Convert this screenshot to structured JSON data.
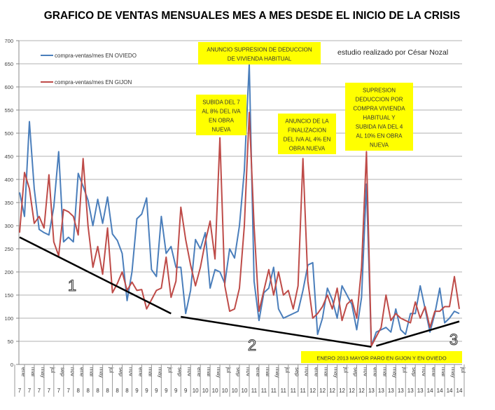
{
  "chart_data": {
    "type": "line",
    "title": "GRAFICO DE VENTAS MENSUALES MES A MES DESDE EL INICIO DE LA CRISIS",
    "credit": "estudio realizado por César Nozal",
    "ylim": [
      0,
      700
    ],
    "yticks": [
      0,
      50,
      100,
      150,
      200,
      250,
      300,
      350,
      400,
      450,
      500,
      550,
      600,
      650,
      700
    ],
    "grid": true,
    "legend_position": "top-left",
    "x_start": "ene 2007",
    "x_end": "jul 2014",
    "x_tick_labels": [
      {
        "m": "ene",
        "y": "7"
      },
      {
        "m": "mar",
        "y": "7"
      },
      {
        "m": "may",
        "y": "7"
      },
      {
        "m": "jul",
        "y": "7"
      },
      {
        "m": "sep",
        "y": "7"
      },
      {
        "m": "nov",
        "y": "7"
      },
      {
        "m": "ene",
        "y": "8"
      },
      {
        "m": "mar",
        "y": "8"
      },
      {
        "m": "may",
        "y": "8"
      },
      {
        "m": "jul",
        "y": "8"
      },
      {
        "m": "sep",
        "y": "8"
      },
      {
        "m": "nov",
        "y": "8"
      },
      {
        "m": "ene",
        "y": "9"
      },
      {
        "m": "mar",
        "y": "9"
      },
      {
        "m": "may",
        "y": "9"
      },
      {
        "m": "jul",
        "y": "9"
      },
      {
        "m": "sep",
        "y": "9"
      },
      {
        "m": "nov",
        "y": "9"
      },
      {
        "m": "ene",
        "y": "10"
      },
      {
        "m": "mar",
        "y": "10"
      },
      {
        "m": "may",
        "y": "10"
      },
      {
        "m": "jul",
        "y": "10"
      },
      {
        "m": "sep",
        "y": "10"
      },
      {
        "m": "nov",
        "y": "10"
      },
      {
        "m": "ene",
        "y": "11"
      },
      {
        "m": "mar",
        "y": "11"
      },
      {
        "m": "may",
        "y": "11"
      },
      {
        "m": "jul",
        "y": "11"
      },
      {
        "m": "sep",
        "y": "11"
      },
      {
        "m": "nov",
        "y": "11"
      },
      {
        "m": "ene",
        "y": "12"
      },
      {
        "m": "mar",
        "y": "12"
      },
      {
        "m": "may",
        "y": "12"
      },
      {
        "m": "jul",
        "y": "12"
      },
      {
        "m": "sep",
        "y": "12"
      },
      {
        "m": "nov",
        "y": "12"
      },
      {
        "m": "ene",
        "y": "13"
      },
      {
        "m": "mar",
        "y": "13"
      },
      {
        "m": "may",
        "y": "13"
      },
      {
        "m": "jul",
        "y": "13"
      },
      {
        "m": "sep",
        "y": "13"
      },
      {
        "m": "nov",
        "y": "13"
      },
      {
        "m": "ene",
        "y": "14"
      },
      {
        "m": "mar",
        "y": "14"
      },
      {
        "m": "may",
        "y": "14"
      },
      {
        "m": "jul",
        "y": "14"
      }
    ],
    "series": [
      {
        "name": "compra-ventas/mes EN OVIEDO",
        "color": "#4a7ebb",
        "values": [
          372,
          320,
          525,
          380,
          292,
          285,
          280,
          340,
          460,
          265,
          275,
          265,
          413,
          385,
          355,
          300,
          357,
          305,
          362,
          282,
          268,
          240,
          138,
          200,
          315,
          325,
          360,
          205,
          190,
          320,
          240,
          255,
          210,
          210,
          110,
          160,
          270,
          250,
          285,
          165,
          205,
          200,
          175,
          250,
          230,
          300,
          420,
          650,
          180,
          95,
          155,
          165,
          210,
          120,
          100,
          105,
          110,
          115,
          160,
          215,
          220,
          65,
          100,
          165,
          140,
          100,
          170,
          150,
          130,
          75,
          145,
          390,
          40,
          70,
          75,
          80,
          70,
          120,
          75,
          65,
          110,
          110,
          170,
          120,
          70,
          110,
          165,
          90,
          100,
          115,
          110
        ]
      },
      {
        "name": "compra-ventas/mes EN GIJON",
        "color": "#be4b48",
        "values": [
          285,
          415,
          380,
          305,
          320,
          295,
          410,
          265,
          235,
          335,
          330,
          320,
          280,
          445,
          300,
          210,
          255,
          195,
          295,
          155,
          175,
          200,
          160,
          178,
          160,
          162,
          120,
          140,
          160,
          165,
          232,
          145,
          180,
          340,
          270,
          215,
          170,
          210,
          265,
          310,
          228,
          490,
          170,
          115,
          120,
          165,
          300,
          545,
          300,
          115,
          160,
          205,
          150,
          200,
          150,
          160,
          120,
          170,
          445,
          180,
          100,
          110,
          125,
          150,
          120,
          165,
          95,
          130,
          140,
          100,
          210,
          460,
          40,
          60,
          80,
          150,
          95,
          110,
          100,
          95,
          90,
          135,
          100,
          125,
          80,
          115,
          115,
          125,
          125,
          190,
          120
        ]
      }
    ],
    "trend_lines": [
      {
        "label": "1",
        "from": {
          "month_index": 0,
          "value": 275
        },
        "to": {
          "month_index": 31,
          "value": 110
        }
      },
      {
        "label": "2",
        "from": {
          "month_index": 33,
          "value": 103
        },
        "to": {
          "month_index": 72,
          "value": 38
        }
      },
      {
        "label": "3",
        "from": {
          "month_index": 73,
          "value": 40
        },
        "to": {
          "month_index": 90,
          "value": 93
        }
      }
    ],
    "annotations": [
      {
        "lines": [
          "ANUNCIO SUPRESION DE DEDUCCION",
          "DE VIVIENDA HABITUAL"
        ]
      },
      {
        "lines": [
          "SUBIDA DEL 7",
          "AL 8% DEL IVA",
          "EN OBRA",
          "NUEVA"
        ]
      },
      {
        "lines": [
          "ANUNCIO DE LA",
          "FINALIZACION",
          "DEL IVA AL 4% EN",
          "OBRA NUEVA"
        ]
      },
      {
        "lines": [
          "SUPRESION",
          "DEDUCCION POR",
          "COMPRA VIVIENDA",
          "HABITUAL Y",
          "SUBIDA IVA DEL 4",
          "AL 10% EN OBRA",
          "NUEVA"
        ]
      },
      {
        "lines": [
          "ENERO 2013 MAYOR PARO EN GIJON Y EN OVIEDO"
        ]
      }
    ],
    "annotation_color": "#ffff00"
  }
}
